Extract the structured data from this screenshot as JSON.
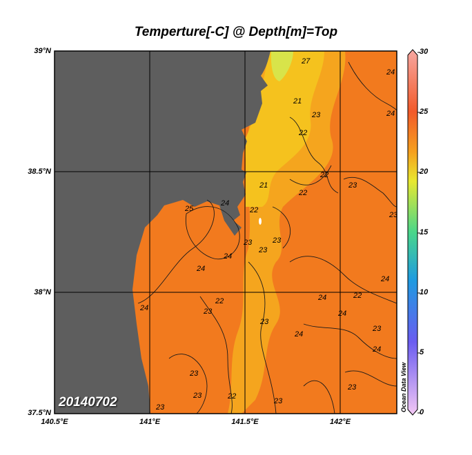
{
  "title": "Temperture[-C] @ Depth[m]=Top",
  "date_label": "20140702",
  "credit": "Ocean Data View",
  "lat_ticks": [
    "39°N",
    "38.5°N",
    "38°N",
    "37.5°N"
  ],
  "lon_ticks": [
    "140.5°E",
    "141°E",
    "141.5°E",
    "142°E"
  ],
  "colorbar_ticks": [
    "30",
    "25",
    "20",
    "15",
    "10",
    "5",
    "0"
  ],
  "colors": {
    "land": "#5e5e5e",
    "sea_warm": "#f27a1e",
    "sea_mid": "#f5a51e",
    "sea_cool": "#f5c21e",
    "coastal_cold": "#d8e44a"
  },
  "contour_labels": [
    "27",
    "21",
    "23",
    "22",
    "24",
    "23",
    "21",
    "22",
    "22",
    "23",
    "24",
    "25",
    "24",
    "22",
    "23",
    "23",
    "24",
    "24",
    "24",
    "23",
    "22",
    "23",
    "24",
    "22",
    "23",
    "24",
    "24",
    "24",
    "24",
    "23",
    "23",
    "23",
    "22",
    "23",
    "23",
    "23"
  ]
}
